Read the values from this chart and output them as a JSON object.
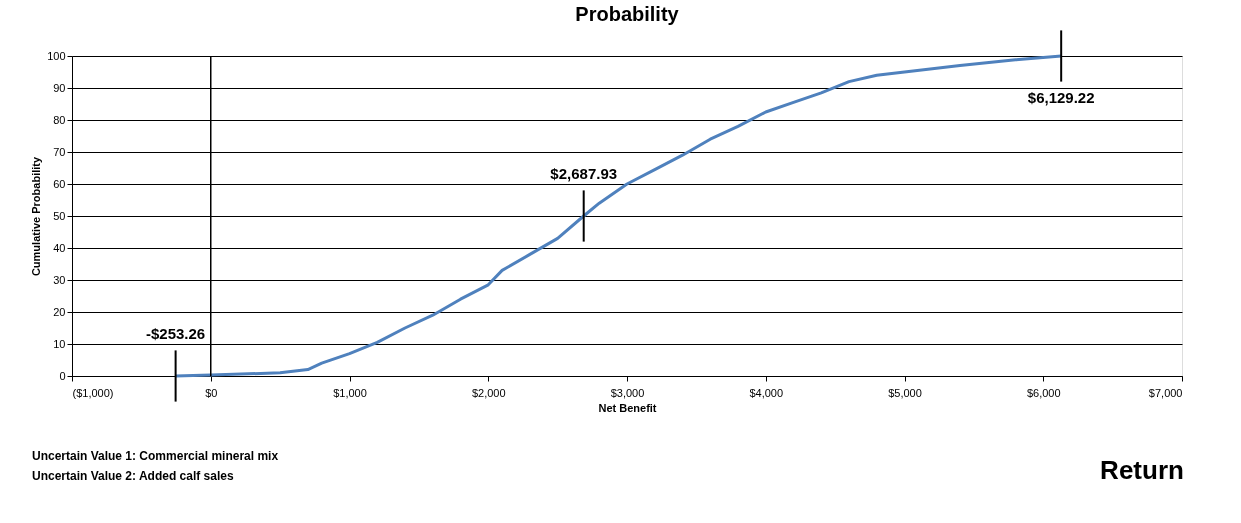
{
  "chart_data": {
    "type": "line",
    "title": "Probability",
    "xlabel": "Net Benefit",
    "ylabel": "Cumulative Probability",
    "x": [
      -253.26,
      0,
      500,
      700,
      800,
      1000,
      1200,
      1400,
      1600,
      1800,
      2000,
      2100,
      2300,
      2500,
      2687.93,
      2800,
      3000,
      3200,
      3400,
      3600,
      3800,
      4000,
      4200,
      4400,
      4600,
      4800,
      5000,
      5400,
      5800,
      6129.22
    ],
    "series": [
      {
        "color": "#4f81bd",
        "values": [
          0,
          0.3,
          1,
          2,
          4,
          7,
          10.5,
          15,
          19,
          24,
          28.5,
          33,
          38,
          43,
          50,
          54,
          60,
          64.5,
          69,
          74,
          78,
          82.5,
          85.5,
          88.5,
          92,
          94,
          95,
          97,
          98.8,
          100
        ]
      }
    ],
    "xlim": [
      -1000,
      7000
    ],
    "xticks": [
      {
        "value": -1000,
        "label": "($1,000)"
      },
      {
        "value": 0,
        "label": "$0"
      },
      {
        "value": 1000,
        "label": "$1,000"
      },
      {
        "value": 2000,
        "label": "$2,000"
      },
      {
        "value": 3000,
        "label": "$3,000"
      },
      {
        "value": 4000,
        "label": "$4,000"
      },
      {
        "value": 5000,
        "label": "$5,000"
      },
      {
        "value": 6000,
        "label": "$6,000"
      },
      {
        "value": 7000,
        "label": "$7,000"
      }
    ],
    "ylim": [
      0,
      100
    ],
    "yticks": [
      0,
      10,
      20,
      30,
      40,
      50,
      60,
      70,
      80,
      90,
      100
    ],
    "grid": "y",
    "marker": "none",
    "line_style": "solid",
    "ref_lines": [
      {
        "axis": "x",
        "value": 0,
        "color": "#000000"
      }
    ],
    "annotations": [
      {
        "text": "-$253.26",
        "x": -253.26,
        "y": 0
      },
      {
        "text": "$2,687.93",
        "x": 2687.93,
        "y": 50
      },
      {
        "text": "$6,129.22",
        "x": 6129.22,
        "y": 100
      },
      "Uncertain Value 1: Commercial mineral mix",
      "Uncertain Value 2: Added calf sales",
      "Return"
    ]
  }
}
